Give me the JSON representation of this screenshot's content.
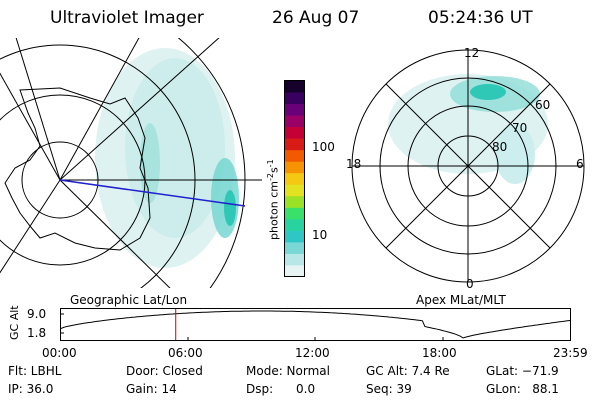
{
  "header": {
    "instrument": "Ultraviolet Imager",
    "date": "26 Aug 07",
    "time": "05:24:36 UT"
  },
  "colorbar": {
    "unit_label": "photon cm",
    "unit_sup1": "-2",
    "unit_mid": "s",
    "unit_sup2": "-1",
    "ticks": [
      "100",
      "10"
    ],
    "colors": [
      "#e8f4f4",
      "#b9e6e6",
      "#79d7d6",
      "#2fc7c5",
      "#28d3a0",
      "#39e06a",
      "#9be227",
      "#e2e220",
      "#f5c812",
      "#f79300",
      "#f35a00",
      "#d91b18",
      "#c40036",
      "#9a0066",
      "#6a007a",
      "#3a0060",
      "#14002a"
    ]
  },
  "left_panel": {
    "label": "Geographic Lat/Lon"
  },
  "right_panel": {
    "label": "Apex MLat/MLT",
    "mlt_labels": {
      "top": "12",
      "left": "18",
      "right": "6",
      "bottom": "0"
    },
    "lat_labels": [
      "60",
      "70",
      "80"
    ]
  },
  "altitude_plot": {
    "axis_label": "GC Alt",
    "y_ticks": [
      "9.0",
      "1.8"
    ],
    "x_ticks": [
      "00:00",
      "06:00",
      "12:00",
      "18:00",
      "23:59"
    ],
    "current_time_fraction": 0.2254,
    "marker_color": "#d00000"
  },
  "status": {
    "filter": "Flt: LBHL",
    "door": "Door: Closed",
    "mode": "Mode: Normal",
    "gc_alt": "GC Alt: 7.4 Re",
    "glat": "GLat: −71.9",
    "ip": "IP: 36.0",
    "gain": "Gain: 14",
    "dsp": "Dsp:      0.0",
    "seq": "Seq: 39",
    "glon": "GLon:   88.1"
  }
}
